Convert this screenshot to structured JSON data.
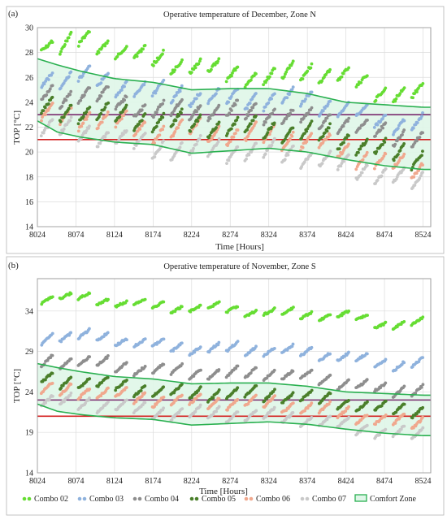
{
  "chart_data": [
    {
      "type": "scatter",
      "panel_label": "(a)",
      "title": "Operative temperature of December, Zone N",
      "xlabel": "Time [Hours]",
      "ylabel": "TOP [°C]",
      "xlim": [
        8024,
        8534
      ],
      "ylim": [
        14,
        30
      ],
      "xticks": [
        "8024",
        "8074",
        "8124",
        "8174",
        "8224",
        "8274",
        "8324",
        "8374",
        "8424",
        "8474",
        "8524"
      ],
      "yticks": [
        "14",
        "16",
        "18",
        "20",
        "22",
        "24",
        "26",
        "28",
        "30"
      ],
      "reference_lines": [
        {
          "y": 23.0,
          "color": "#7a2a6e"
        },
        {
          "y": 21.0,
          "color": "#d42020"
        }
      ],
      "comfort_zone": {
        "x": [
          8024,
          8050,
          8080,
          8124,
          8174,
          8224,
          8274,
          8324,
          8374,
          8424,
          8474,
          8524,
          8534
        ],
        "upper": [
          27.5,
          27.0,
          26.5,
          25.9,
          25.6,
          25.0,
          25.1,
          25.1,
          24.7,
          24.0,
          23.8,
          23.6,
          23.6
        ],
        "lower": [
          22.5,
          21.6,
          21.2,
          20.8,
          20.6,
          19.9,
          20.1,
          20.3,
          20.0,
          19.4,
          18.9,
          18.6,
          18.6
        ]
      },
      "series": [
        {
          "name": "Combo 02",
          "color": "#66dd33",
          "level": [
            29.3,
            28.4,
            29.0,
            28.4,
            27.4,
            27.0,
            26.3,
            26.0,
            26.6,
            26.0,
            24.8,
            24.6,
            24.2
          ],
          "amp": 0.9
        },
        {
          "name": "Combo 03",
          "color": "#8fb2dd",
          "level": [
            26.3,
            25.8,
            26.1,
            25.5,
            24.8,
            24.6,
            24.2,
            24.3,
            24.2,
            23.4,
            22.4,
            22.3,
            22.1
          ],
          "amp": 0.9
        },
        {
          "name": "Combo 04",
          "color": "#8e8e8e",
          "level": [
            24.9,
            24.5,
            24.6,
            24.3,
            23.2,
            23.5,
            23.2,
            23.2,
            22.6,
            22.4,
            21.4,
            21.2,
            21.0
          ],
          "amp": 0.9
        },
        {
          "name": "Combo 05",
          "color": "#4a7f2a",
          "level": [
            23.7,
            23.3,
            23.3,
            23.0,
            22.5,
            22.3,
            22.0,
            21.9,
            21.5,
            21.0,
            20.0,
            19.6,
            19.4
          ],
          "amp": 1.0
        },
        {
          "name": "Combo 06",
          "color": "#f0a88e",
          "level": [
            23.1,
            22.8,
            22.8,
            22.5,
            21.6,
            21.8,
            21.4,
            21.3,
            21.0,
            20.0,
            19.2,
            18.5,
            18.2
          ],
          "amp": 1.0
        },
        {
          "name": "Combo 07",
          "color": "#c9c9c9",
          "level": [
            22.2,
            21.8,
            21.6,
            21.2,
            20.4,
            20.2,
            20.2,
            20.0,
            19.7,
            18.9,
            18.2,
            17.4,
            17.0
          ],
          "amp": 1.0
        }
      ]
    },
    {
      "type": "scatter",
      "panel_label": "(b)",
      "title": "Operative temperature of November, Zone S",
      "xlabel": "Time [Hours]",
      "ylabel": "TOP [°C]",
      "xlim": [
        8024,
        8534
      ],
      "ylim": [
        14,
        38
      ],
      "xticks": [
        "8024",
        "8074",
        "8124",
        "8174",
        "8224",
        "8274",
        "8324",
        "8374",
        "8424",
        "8474",
        "8524"
      ],
      "yticks": [
        "14",
        "19",
        "24",
        "29",
        "34"
      ],
      "reference_lines": [
        {
          "y": 23.0,
          "color": "#7a2a6e"
        },
        {
          "y": 21.0,
          "color": "#d42020"
        }
      ],
      "comfort_zone": {
        "x": [
          8024,
          8050,
          8080,
          8124,
          8174,
          8224,
          8274,
          8324,
          8374,
          8424,
          8474,
          8524,
          8534
        ],
        "upper": [
          27.5,
          27.0,
          26.5,
          25.9,
          25.6,
          25.0,
          25.1,
          25.1,
          24.7,
          24.0,
          23.8,
          23.6,
          23.6
        ],
        "lower": [
          22.5,
          21.6,
          21.2,
          20.8,
          20.6,
          19.9,
          20.1,
          20.3,
          20.0,
          19.4,
          18.9,
          18.6,
          18.6
        ]
      },
      "series": [
        {
          "name": "Combo 02",
          "color": "#66dd33",
          "level": [
            35.6,
            35.8,
            35.6,
            35.2,
            34.6,
            34.4,
            34.3,
            33.8,
            33.6,
            33.4,
            32.4,
            32.4,
            32.6
          ],
          "amp": 0.6
        },
        {
          "name": "Combo 03",
          "color": "#8fb2dd",
          "level": [
            30.6,
            31.0,
            30.9,
            30.6,
            29.8,
            29.4,
            29.3,
            29.2,
            28.8,
            28.4,
            27.4,
            27.6,
            27.8
          ],
          "amp": 0.8
        },
        {
          "name": "Combo 04",
          "color": "#8e8e8e",
          "level": [
            27.7,
            27.9,
            27.8,
            27.3,
            26.7,
            26.5,
            26.2,
            26.4,
            25.8,
            25.2,
            24.2,
            24.4,
            24.6
          ],
          "amp": 0.9
        },
        {
          "name": "Combo 05",
          "color": "#4a7f2a",
          "level": [
            25.6,
            25.3,
            25.4,
            24.8,
            24.2,
            23.8,
            23.8,
            23.7,
            23.3,
            22.7,
            21.8,
            21.8,
            21.9
          ],
          "amp": 1.0
        },
        {
          "name": "Combo 06",
          "color": "#f0a88e",
          "level": [
            24.4,
            24.1,
            24.2,
            23.7,
            23.1,
            22.8,
            22.7,
            22.6,
            22.0,
            21.4,
            20.4,
            20.2,
            20.3
          ],
          "amp": 1.0
        },
        {
          "name": "Combo 07",
          "color": "#c9c9c9",
          "level": [
            23.0,
            22.8,
            22.6,
            22.3,
            21.6,
            21.3,
            21.2,
            21.1,
            20.6,
            19.9,
            19.0,
            18.6,
            18.7
          ],
          "amp": 1.0
        }
      ]
    }
  ],
  "legend": {
    "placement": "bottom",
    "items": [
      {
        "name": "Combo 02",
        "color": "#66dd33",
        "kind": "marker"
      },
      {
        "name": "Combo 03",
        "color": "#8fb2dd",
        "kind": "marker"
      },
      {
        "name": "Combo 04",
        "color": "#8e8e8e",
        "kind": "marker"
      },
      {
        "name": "Combo 05",
        "color": "#4a7f2a",
        "kind": "marker"
      },
      {
        "name": "Combo 06",
        "color": "#f0a88e",
        "kind": "marker"
      },
      {
        "name": "Combo 07",
        "color": "#c9c9c9",
        "kind": "marker"
      },
      {
        "name": "Comfort Zone",
        "color": "#2ab050",
        "kind": "band"
      }
    ]
  },
  "colors": {
    "comfort_line": "#2ab050",
    "comfort_fill": "#dff6e8",
    "grid": "#dcdcdc",
    "frame": "#9a9a9a"
  }
}
